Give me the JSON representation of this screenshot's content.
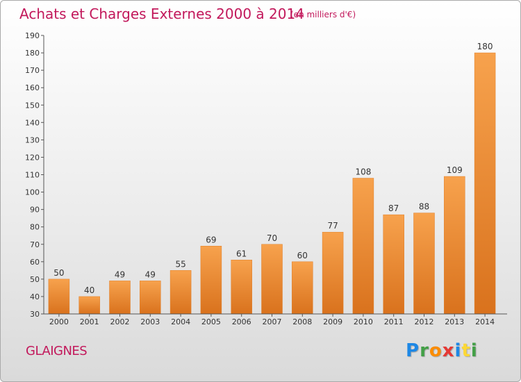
{
  "chart_data": {
    "type": "bar",
    "title": "Achats et Charges Externes 2000 à 2014",
    "subtitle": "(en milliers d'€)",
    "categories": [
      "2000",
      "2001",
      "2002",
      "2003",
      "2004",
      "2005",
      "2006",
      "2007",
      "2008",
      "2009",
      "2010",
      "2011",
      "2012",
      "2013",
      "2014"
    ],
    "values": [
      50,
      40,
      49,
      49,
      55,
      69,
      61,
      70,
      60,
      77,
      108,
      87,
      88,
      109,
      180
    ],
    "ylim": [
      30,
      190
    ],
    "yticks": [
      30,
      40,
      50,
      60,
      70,
      80,
      90,
      100,
      110,
      120,
      130,
      140,
      150,
      160,
      170,
      180,
      190
    ],
    "xlabel": "",
    "ylabel": "",
    "grid": false,
    "bar_color": "#f08a2c"
  },
  "footer": {
    "commune": "GLAIGNES",
    "logo_letters": [
      "P",
      "r",
      "o",
      "x",
      "i",
      "t",
      "i"
    ],
    "logo_colors": [
      "#1e88e5",
      "#43a047",
      "#fb8c00",
      "#e53935",
      "#1e88e5",
      "#fdd835",
      "#43a047"
    ]
  }
}
